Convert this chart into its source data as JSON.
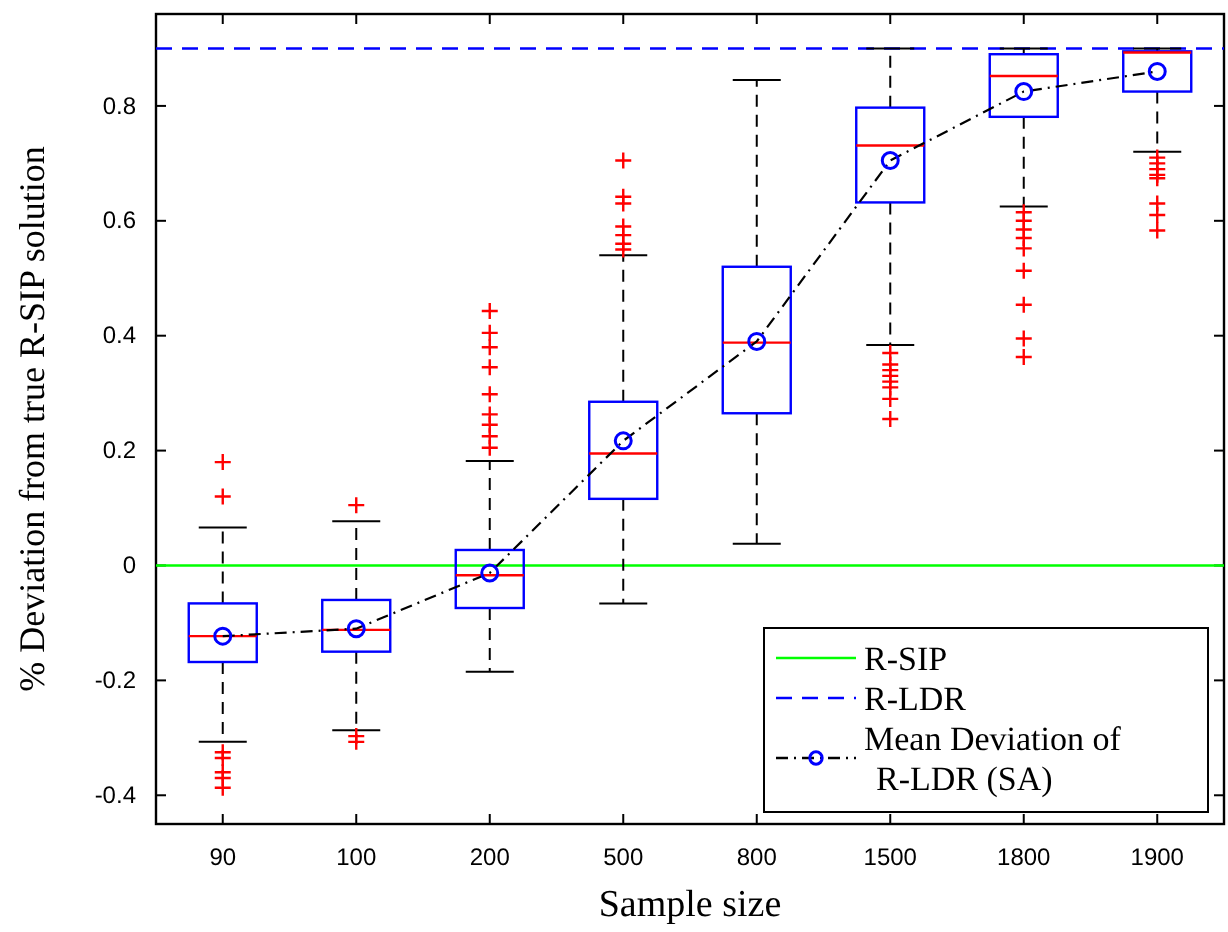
{
  "chart_data": {
    "type": "box",
    "xlabel": "Sample size",
    "ylabel": "% Deviation from true R-SIP solution",
    "categories": [
      "90",
      "100",
      "200",
      "500",
      "800",
      "1500",
      "1800",
      "1900"
    ],
    "ylim": [
      -0.45,
      0.96
    ],
    "yticks": [
      -0.4,
      -0.2,
      0,
      0.2,
      0.4,
      0.6,
      0.8
    ],
    "grid": false,
    "legend": "bottom right",
    "ref_lines": [
      {
        "axis": "y",
        "value": 0,
        "label": "R-SIP",
        "color": "#00ff00",
        "line_style": "solid"
      },
      {
        "axis": "y",
        "value": 0.9,
        "label": "R-LDR",
        "color": "#0000ff",
        "line_style": "dashed"
      }
    ],
    "series": [
      {
        "color": "#0000ff",
        "boxes": [
          {
            "low": -0.307,
            "q1": -0.168,
            "median": -0.123,
            "q3": -0.066,
            "high": 0.066,
            "outliers": [
              0.18,
              0.12,
              -0.325,
              -0.335,
              -0.36,
              -0.37,
              -0.387
            ]
          },
          {
            "low": -0.287,
            "q1": -0.15,
            "median": -0.112,
            "q3": -0.06,
            "high": 0.077,
            "outliers": [
              0.105,
              -0.297,
              -0.307
            ]
          },
          {
            "low": -0.185,
            "q1": -0.074,
            "median": -0.017,
            "q3": 0.027,
            "high": 0.182,
            "outliers": [
              0.443,
              0.405,
              0.38,
              0.345,
              0.298,
              0.263,
              0.245,
              0.225,
              0.205
            ]
          },
          {
            "low": -0.066,
            "q1": 0.116,
            "median": 0.195,
            "q3": 0.285,
            "high": 0.54,
            "outliers": [
              0.705,
              0.642,
              0.63,
              0.59,
              0.575,
              0.56,
              0.55
            ]
          },
          {
            "low": 0.038,
            "q1": 0.265,
            "median": 0.388,
            "q3": 0.52,
            "high": 0.845
          },
          {
            "low": 0.384,
            "q1": 0.632,
            "median": 0.731,
            "q3": 0.797,
            "high": 0.9,
            "outliers": [
              0.37,
              0.35,
              0.34,
              0.33,
              0.32,
              0.31,
              0.29,
              0.255
            ]
          },
          {
            "low": 0.625,
            "q1": 0.781,
            "median": 0.852,
            "q3": 0.89,
            "high": 0.9,
            "outliers": [
              0.615,
              0.6,
              0.585,
              0.57,
              0.552,
              0.513,
              0.454,
              0.395,
              0.363
            ]
          },
          {
            "low": 0.72,
            "q1": 0.825,
            "median": 0.893,
            "q3": 0.895,
            "high": 0.9,
            "outliers": [
              0.71,
              0.7,
              0.69,
              0.68,
              0.674,
              0.63,
              0.61,
              0.583
            ]
          }
        ]
      },
      {
        "type": "line",
        "name": "Mean Deviation of R-LDR (SA)",
        "color": "#000000",
        "marker": "circle",
        "line_style": "dashed",
        "values": [
          -0.123,
          -0.11,
          -0.013,
          0.217,
          0.39,
          0.705,
          0.825,
          0.86
        ]
      }
    ]
  }
}
